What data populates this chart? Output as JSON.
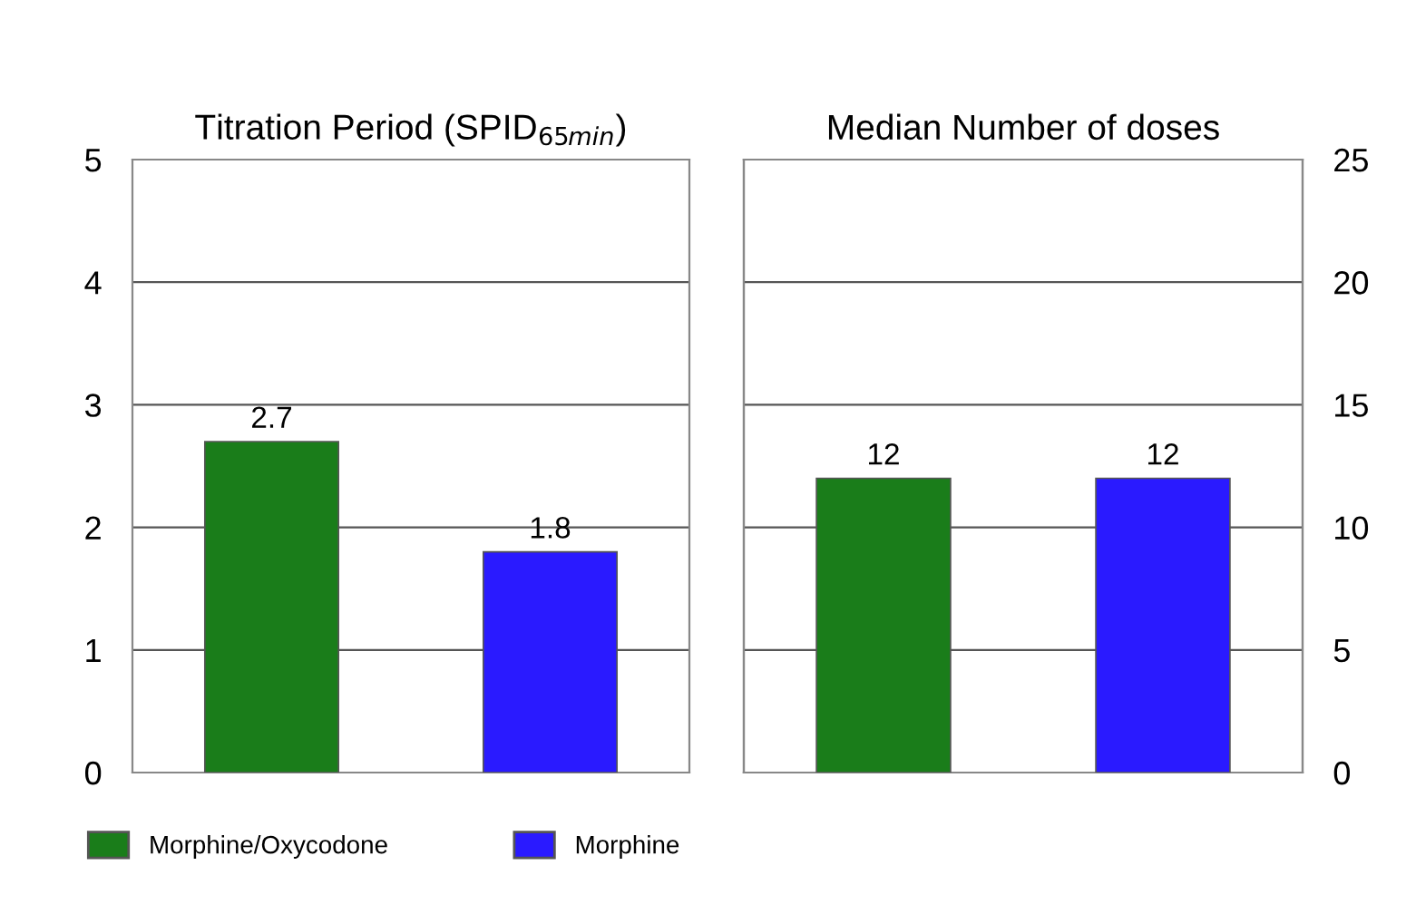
{
  "chart_data": [
    {
      "type": "bar",
      "title": "Titration Period (SPID$_{65min}$)",
      "categories": [
        null,
        null
      ],
      "series": [
        {
          "name": "Morphine/Oxycodone",
          "color": "#1a7d1a",
          "values": [
            2.7,
            null
          ]
        },
        {
          "name": "Morphine",
          "color": "#2a1aff",
          "values": [
            null,
            1.8
          ]
        }
      ],
      "ylim": [
        0,
        5
      ],
      "yticks": [
        0,
        1,
        2,
        3,
        4,
        5
      ],
      "grid": "y",
      "data_labels": true,
      "legend": "bottom"
    },
    {
      "type": "bar",
      "title": "Median Number of doses",
      "categories": [
        null,
        null
      ],
      "series": [
        {
          "color": "#1a7d1a",
          "values": [
            12,
            null
          ],
          "axis": "y2"
        },
        {
          "color": "#2a1aff",
          "values": [
            null,
            12
          ],
          "axis": "y2"
        }
      ],
      "y2lim": [
        0,
        25
      ],
      "y2ticks": [
        0,
        5,
        10,
        15,
        20,
        25
      ],
      "grid": "y",
      "data_labels": true
    }
  ]
}
